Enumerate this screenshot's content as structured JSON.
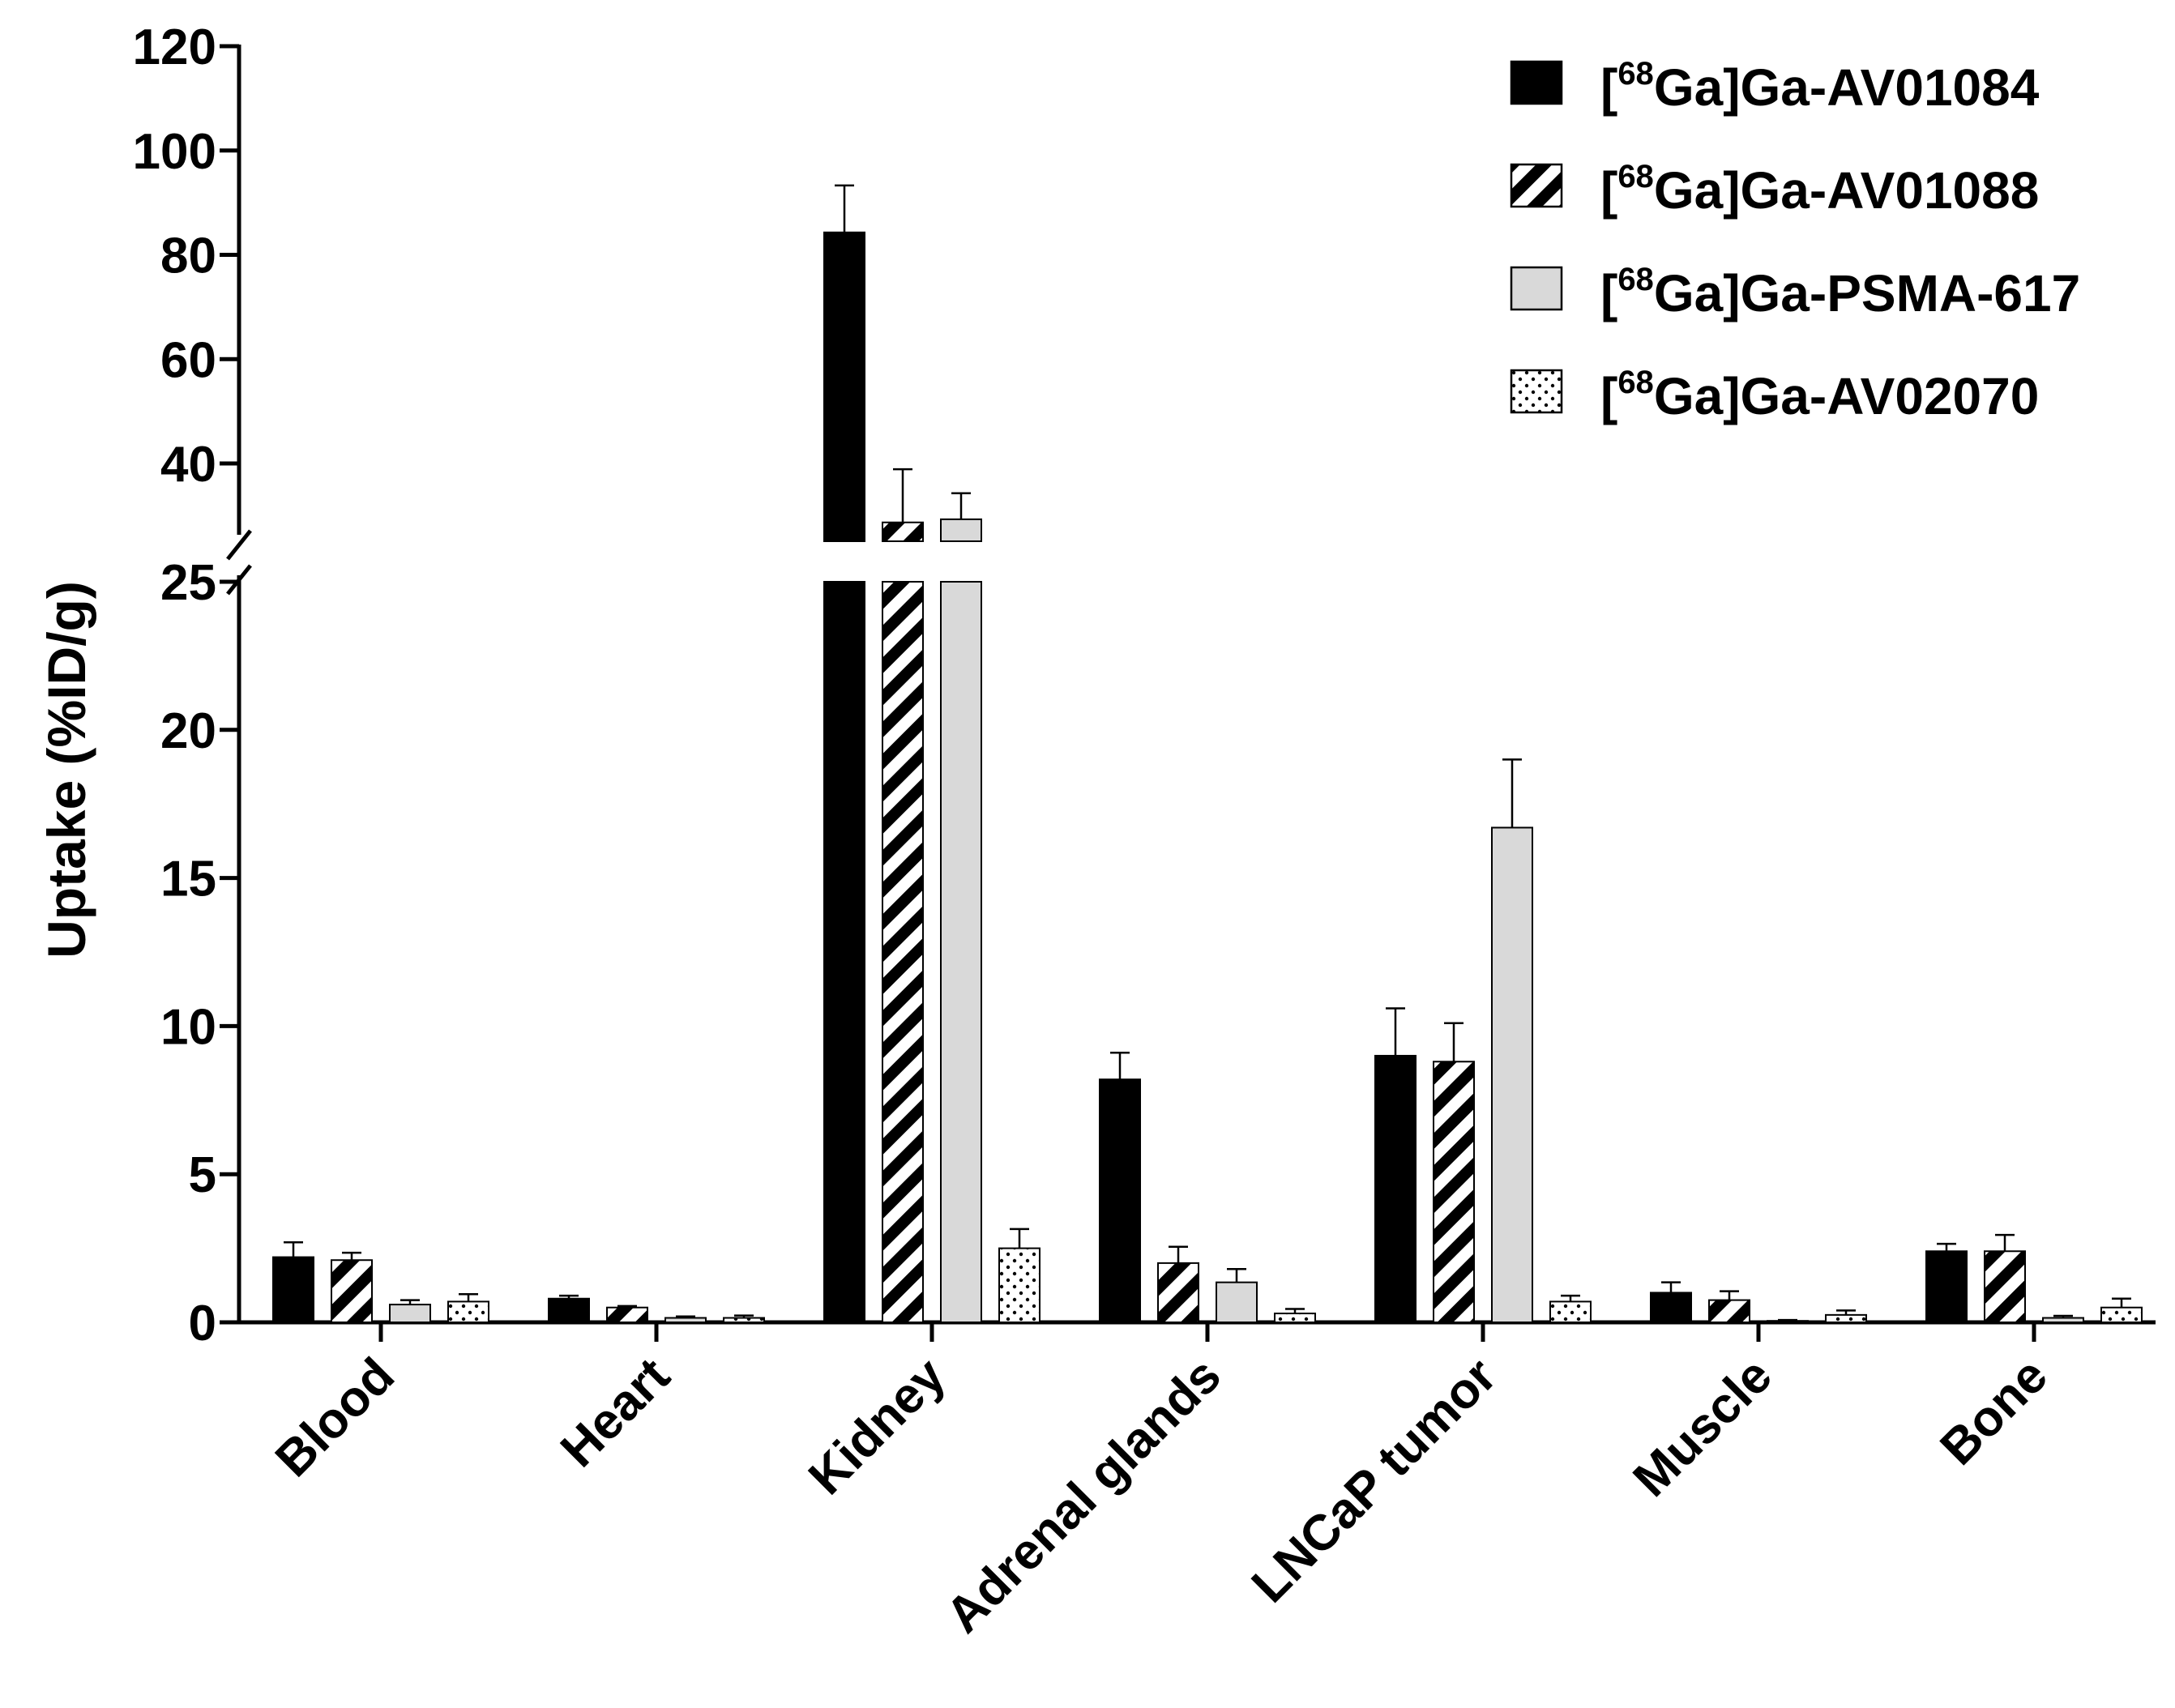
{
  "chart_data": {
    "type": "bar",
    "title": "",
    "ylabel": "Uptake (%ID/g)",
    "xlabel": "",
    "categories": [
      "Blood",
      "Heart",
      "Kidney",
      "Adrenal glands",
      "LNCaP tumor",
      "Muscle",
      "Bone"
    ],
    "y_axis_break": {
      "lower_range": [
        0,
        25
      ],
      "upper_range": [
        25,
        120
      ]
    },
    "y_ticks_lower": [
      0,
      5,
      10,
      15,
      20,
      25
    ],
    "y_ticks_upper": [
      40,
      60,
      80,
      100,
      120
    ],
    "legend_position": "top-right",
    "series": [
      {
        "name_prefix": "[",
        "name_sup": "68",
        "name_main": "Ga]Ga-AV01084",
        "pattern": "solid-black",
        "values": [
          2.2,
          0.8,
          84.3,
          8.2,
          9.0,
          1.0,
          2.4
        ],
        "errors": [
          0.5,
          0.1,
          9.0,
          0.9,
          1.6,
          0.35,
          0.25
        ]
      },
      {
        "name_prefix": "[",
        "name_sup": "68",
        "name_main": "Ga]Ga-AV01088",
        "pattern": "diagonal-stripes",
        "values": [
          2.1,
          0.5,
          28.7,
          2.0,
          8.8,
          0.75,
          2.4
        ],
        "errors": [
          0.25,
          0.05,
          10.2,
          0.55,
          1.3,
          0.3,
          0.55
        ]
      },
      {
        "name_prefix": "[",
        "name_sup": "68",
        "name_main": "Ga]Ga-PSMA-617",
        "pattern": "solid-lightgray",
        "values": [
          0.6,
          0.15,
          29.3,
          1.35,
          16.7,
          0.05,
          0.15
        ],
        "errors": [
          0.15,
          0.05,
          5.0,
          0.45,
          2.3,
          0.03,
          0.07
        ]
      },
      {
        "name_prefix": "[",
        "name_sup": "68",
        "name_main": "Ga]Ga-AV02070",
        "pattern": "dotted",
        "values": [
          0.7,
          0.15,
          2.5,
          0.3,
          0.7,
          0.25,
          0.5
        ],
        "errors": [
          0.25,
          0.08,
          0.65,
          0.15,
          0.2,
          0.15,
          0.3
        ]
      }
    ],
    "colors": {
      "axis": "#000000",
      "black_bar": "#000000",
      "gray_bar": "#d9d9d9",
      "white": "#ffffff"
    }
  }
}
